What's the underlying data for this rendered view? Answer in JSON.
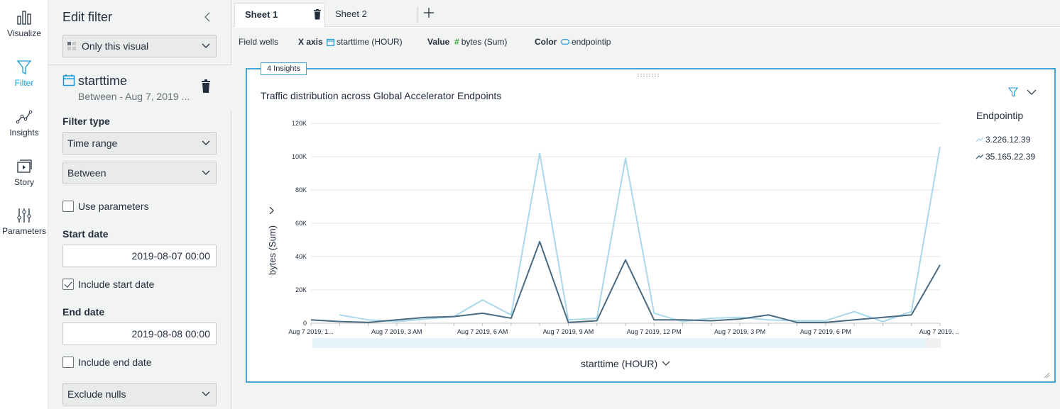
{
  "nav": {
    "items": [
      {
        "label": "Visualize",
        "icon": "bar-chart-icon"
      },
      {
        "label": "Filter",
        "icon": "funnel-icon",
        "active": true
      },
      {
        "label": "Insights",
        "icon": "insights-icon"
      },
      {
        "label": "Story",
        "icon": "story-icon"
      },
      {
        "label": "Parameters",
        "icon": "sliders-icon"
      }
    ]
  },
  "panel": {
    "title": "Edit filter",
    "scope": "Only this visual",
    "field": {
      "name": "starttime",
      "summary": "Between - Aug 7, 2019 ..."
    },
    "filter_type_label": "Filter type",
    "filter_type": "Time range",
    "condition": "Between",
    "use_parameters": "Use parameters",
    "start_date_label": "Start date",
    "start_date": "2019-08-07 00:00",
    "include_start": "Include start date",
    "end_date_label": "End date",
    "end_date": "2019-08-08 00:00",
    "include_end": "Include end date",
    "nulls": "Exclude nulls"
  },
  "tabs": [
    {
      "label": "Sheet 1",
      "active": true
    },
    {
      "label": "Sheet 2",
      "active": false
    }
  ],
  "wells": {
    "title": "Field wells",
    "x_key": "X axis",
    "x_field": "starttime (HOUR)",
    "value_key": "Value",
    "value_field": "bytes (Sum)",
    "color_key": "Color",
    "color_field": "endpointip"
  },
  "visual": {
    "insights_badge": "4 Insights",
    "title": "Traffic distribution across Global Accelerator Endpoints",
    "legend_title": "Endpointip",
    "colors": {
      "accent": "#44a4d6",
      "series1": "#a8d8ea",
      "series2": "#4a6a82"
    }
  },
  "chart_data": {
    "type": "line",
    "title": "Traffic distribution across Global Accelerator Endpoints",
    "xlabel": "starttime (HOUR)",
    "ylabel": "bytes (Sum)",
    "ylim": [
      0,
      120000
    ],
    "yticks": [
      "0",
      "20K",
      "40K",
      "60K",
      "80K",
      "100K",
      "120K"
    ],
    "ytick_values": [
      0,
      20000,
      40000,
      60000,
      80000,
      100000,
      120000
    ],
    "xtick_labels": [
      {
        "hour": 0,
        "label": "Aug 7 2019, 1..."
      },
      {
        "hour": 3,
        "label": "Aug 7 2019, 3 AM"
      },
      {
        "hour": 6,
        "label": "Aug 7 2019, 6 AM"
      },
      {
        "hour": 9,
        "label": "Aug 7 2019, 9 AM"
      },
      {
        "hour": 12,
        "label": "Aug 7 2019, 12 PM"
      },
      {
        "hour": 15,
        "label": "Aug 7 2019, 3 PM"
      },
      {
        "hour": 18,
        "label": "Aug 7 2019, 6 PM"
      },
      {
        "hour": 22,
        "label": "Aug 7 2019, ..."
      }
    ],
    "x": [
      0,
      1,
      2,
      3,
      4,
      5,
      6,
      7,
      8,
      9,
      10,
      11,
      12,
      13,
      14,
      15,
      16,
      17,
      18,
      19,
      20,
      21,
      22
    ],
    "grid": true,
    "legend": "right",
    "series": [
      {
        "name": "3.226.12.39",
        "values": [
          null,
          5000,
          2000,
          1000,
          2500,
          4000,
          14000,
          5000,
          102000,
          2000,
          3000,
          99000,
          6000,
          1000,
          3000,
          3500,
          2000,
          1500,
          1500,
          7000,
          1000,
          7000,
          106000
        ]
      },
      {
        "name": "35.165.22.39",
        "values": [
          2000,
          1000,
          500,
          2000,
          3500,
          4000,
          6000,
          3000,
          49000,
          500,
          1500,
          38000,
          2000,
          2000,
          1500,
          2500,
          5000,
          500,
          500,
          2000,
          3500,
          5000,
          35000
        ]
      }
    ]
  }
}
